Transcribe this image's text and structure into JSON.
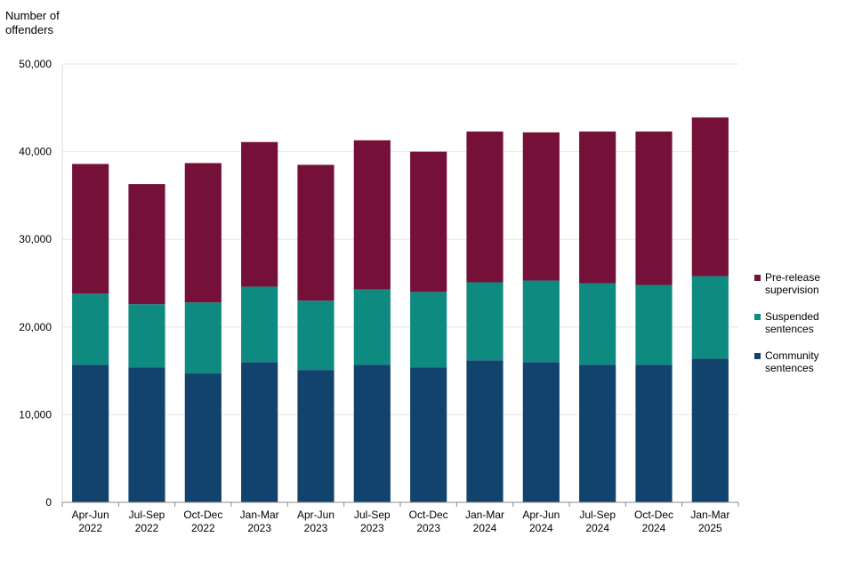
{
  "chart_data": {
    "type": "bar",
    "stacked": true,
    "ylabel": "Number of\noffenders",
    "xlabel": "",
    "ylim": [
      0,
      50000
    ],
    "yticks": [
      0,
      10000,
      20000,
      30000,
      40000,
      50000
    ],
    "ytick_labels": [
      "0",
      "10,000",
      "20,000",
      "30,000",
      "40,000",
      "50,000"
    ],
    "categories": [
      [
        "Apr-Jun",
        "2022"
      ],
      [
        "Jul-Sep",
        "2022"
      ],
      [
        "Oct-Dec",
        "2022"
      ],
      [
        "Jan-Mar",
        "2023"
      ],
      [
        "Apr-Jun",
        "2023"
      ],
      [
        "Jul-Sep",
        "2023"
      ],
      [
        "Oct-Dec",
        "2023"
      ],
      [
        "Jan-Mar",
        "2024"
      ],
      [
        "Apr-Jun",
        "2024"
      ],
      [
        "Jul-Sep",
        "2024"
      ],
      [
        "Oct-Dec",
        "2024"
      ],
      [
        "Jan-Mar",
        "2025"
      ]
    ],
    "series": [
      {
        "name": "Community sentences",
        "color": "#12436d",
        "values": [
          15700,
          15400,
          14700,
          16000,
          15100,
          15700,
          15400,
          16200,
          16000,
          15700,
          15700,
          16400
        ]
      },
      {
        "name": "Suspended sentences",
        "color": "#0e8a80",
        "values": [
          8100,
          7200,
          8100,
          8600,
          7900,
          8600,
          8600,
          8900,
          9300,
          9300,
          9100,
          9400
        ]
      },
      {
        "name": "Pre-release supervision",
        "color": "#751038",
        "values": [
          14800,
          13700,
          15900,
          16500,
          15500,
          17000,
          16000,
          17200,
          16900,
          17300,
          17500,
          18100
        ]
      }
    ],
    "legend": {
      "position": "right",
      "order": [
        "Pre-release supervision",
        "Suspended sentences",
        "Community sentences"
      ],
      "labels": [
        "Pre-release\nsupervision",
        "Suspended\nsentences",
        "Community\nsentences"
      ]
    },
    "grid": true
  }
}
